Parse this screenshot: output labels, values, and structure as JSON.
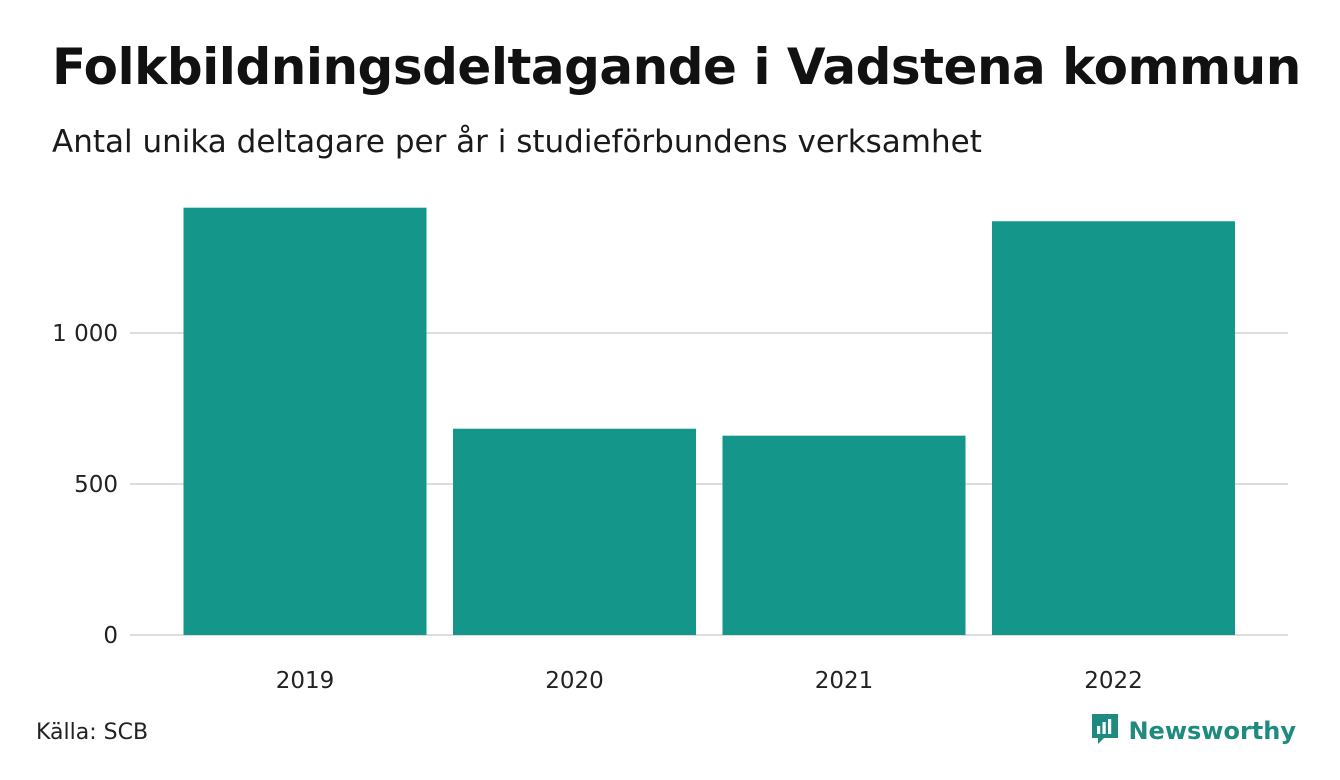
{
  "header": {
    "title": "Folkbildningsdeltagande i Vadstena kommun",
    "subtitle": "Antal unika deltagare per år i studieförbundens verksamhet"
  },
  "footer": {
    "source": "Källa: SCB",
    "brand": "Newsworthy",
    "brand_icon": "newsworthy-logo-icon"
  },
  "colors": {
    "bar": "#14968a",
    "grid": "#dddddd",
    "brand": "#1f8b80"
  },
  "chart_data": {
    "type": "bar",
    "categories": [
      "2019",
      "2020",
      "2021",
      "2022"
    ],
    "values": [
      1415,
      683,
      660,
      1370
    ],
    "title": "Folkbildningsdeltagande i Vadstena kommun",
    "subtitle": "Antal unika deltagare per år i studieförbundens verksamhet",
    "xlabel": "",
    "ylabel": "",
    "ylim": [
      0,
      1500
    ],
    "yticks": [
      0,
      500,
      1000
    ],
    "ytick_labels": [
      "0",
      "500",
      "1 000"
    ],
    "grid": true,
    "legend": "none"
  }
}
